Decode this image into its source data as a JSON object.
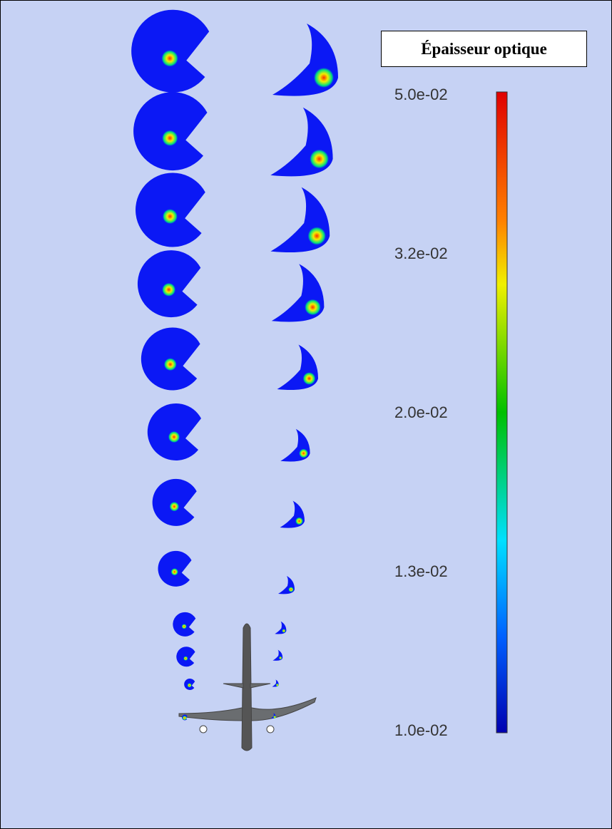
{
  "colorbar": {
    "title": "Épaisseur optique",
    "labels": [
      "5.0e-02",
      "3.2e-02",
      "2.0e-02",
      "1.3e-02",
      "1.0e-02"
    ]
  }
}
